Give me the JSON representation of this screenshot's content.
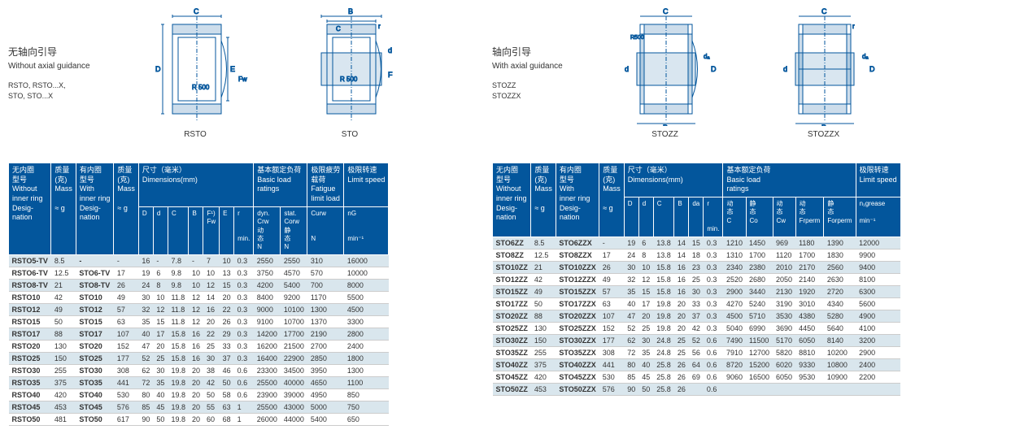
{
  "left": {
    "title_cn": "无轴向引导",
    "title_en": "Without axial guidance",
    "codes": "RSTO, RSTO...X,\nSTO, STO...X",
    "dia_labels": [
      "RSTO",
      "STO"
    ],
    "headers": {
      "c1": "无内圈\n型号",
      "c1b": "Without\ninner ring\nDesig-\nnation",
      "c2": "质量\n(克)",
      "c2b": "Mass",
      "c2c": "≈ g",
      "c3": "有内圈\n型号",
      "c3b": "With\ninner ring\nDesig-\nnation",
      "c4": "质量\n(克)",
      "c4b": "Mass",
      "c4c": "≈ g",
      "c5": "尺寸（毫米）\nDimensions(mm)",
      "dims": [
        "D",
        "d",
        "C",
        "B",
        "F¹)\nFw",
        "E",
        "r"
      ],
      "r_sub": "min.",
      "c6": "基本额定负荷\nBasic load\nratings",
      "dyn": "dyn.\nCrw\n动\n态\nN",
      "stat": "stat.\nCorw\n静\n态\nN",
      "c7": "极限疲劳\n载荷\nFatigue\nlimit load",
      "c7b": "Curw",
      "c7c": "N",
      "c8": "极限转速\nLimit speed",
      "c8b": "nG",
      "c8c": "min⁻¹"
    },
    "rows": [
      [
        "RSTO5-TV",
        "8.5",
        "-",
        "-",
        "16",
        "-",
        "7.8",
        "-",
        "7",
        "10",
        "0.3",
        "2550",
        "2550",
        "310",
        "16000"
      ],
      [
        "RSTO6-TV",
        "12.5",
        "STO6-TV",
        "17",
        "19",
        "6",
        "9.8",
        "10",
        "10",
        "13",
        "0.3",
        "3750",
        "4570",
        "570",
        "10000"
      ],
      [
        "RSTO8-TV",
        "21",
        "STO8-TV",
        "26",
        "24",
        "8",
        "9.8",
        "10",
        "12",
        "15",
        "0.3",
        "4200",
        "5400",
        "700",
        "8000"
      ],
      [
        "RSTO10",
        "42",
        "STO10",
        "49",
        "30",
        "10",
        "11.8",
        "12",
        "14",
        "20",
        "0.3",
        "8400",
        "9200",
        "1170",
        "5500"
      ],
      [
        "RSTO12",
        "49",
        "STO12",
        "57",
        "32",
        "12",
        "11.8",
        "12",
        "16",
        "22",
        "0.3",
        "9000",
        "10100",
        "1300",
        "4500"
      ],
      [
        "RSTO15",
        "50",
        "STO15",
        "63",
        "35",
        "15",
        "11.8",
        "12",
        "20",
        "26",
        "0.3",
        "9100",
        "10700",
        "1370",
        "3300"
      ],
      [
        "RSTO17",
        "88",
        "STO17",
        "107",
        "40",
        "17",
        "15.8",
        "16",
        "22",
        "29",
        "0.3",
        "14200",
        "17700",
        "2190",
        "2800"
      ],
      [
        "RSTO20",
        "130",
        "STO20",
        "152",
        "47",
        "20",
        "15.8",
        "16",
        "25",
        "33",
        "0.3",
        "16200",
        "21500",
        "2700",
        "2400"
      ],
      [
        "RSTO25",
        "150",
        "STO25",
        "177",
        "52",
        "25",
        "15.8",
        "16",
        "30",
        "37",
        "0.3",
        "16400",
        "22900",
        "2850",
        "1800"
      ],
      [
        "RSTO30",
        "255",
        "STO30",
        "308",
        "62",
        "30",
        "19.8",
        "20",
        "38",
        "46",
        "0.6",
        "23300",
        "34500",
        "3950",
        "1300"
      ],
      [
        "RSTO35",
        "375",
        "STO35",
        "441",
        "72",
        "35",
        "19.8",
        "20",
        "42",
        "50",
        "0.6",
        "25500",
        "40000",
        "4650",
        "1100"
      ],
      [
        "RSTO40",
        "420",
        "STO40",
        "530",
        "80",
        "40",
        "19.8",
        "20",
        "50",
        "58",
        "0.6",
        "23900",
        "39000",
        "4950",
        "850"
      ],
      [
        "RSTO45",
        "453",
        "STO45",
        "576",
        "85",
        "45",
        "19.8",
        "20",
        "55",
        "63",
        "1",
        "25500",
        "43000",
        "5000",
        "750"
      ],
      [
        "RSTO50",
        "481",
        "STO50",
        "617",
        "90",
        "50",
        "19.8",
        "20",
        "60",
        "68",
        "1",
        "26000",
        "44000",
        "5400",
        "650"
      ]
    ]
  },
  "right": {
    "title_cn": "轴向引导",
    "title_en": "With axial guidance",
    "codes": "STOZZ\nSTOZZX",
    "dia_labels": [
      "STOZZ",
      "STOZZX"
    ],
    "headers": {
      "c1": "无内圈\n型号",
      "c1b": "Without\ninner ring\nDesig-\nnation",
      "c2": "质量\n(克)",
      "c2b": "Mass",
      "c2c": "≈ g",
      "c3": "有内圈\n型号",
      "c3b": "With\ninner ring\nDesig-\nnation",
      "c4": "质量\n(克)",
      "c4b": "Mass",
      "c4c": "≈ g",
      "c5": "尺寸（毫米）\nDimensions(mm)",
      "dims": [
        "D",
        "d",
        "C",
        "B",
        "da",
        "r"
      ],
      "r_sub": "min.",
      "c6": "基本额定负荷\nBasic load\nratings",
      "loads": [
        "动\n态\nC",
        "静\n态\nCo",
        "动\n态\nCw",
        "动\n态\nFrperm",
        "静\n态\nForperm"
      ],
      "c8": "极限转速\nLimit speed",
      "c8b": "n₁grease",
      "c8c": "min⁻¹"
    },
    "rows": [
      [
        "STO6ZZ",
        "8.5",
        "STO6ZZX",
        "-",
        "19",
        "6",
        "13.8",
        "14",
        "15",
        "0.3",
        "1210",
        "1450",
        "969",
        "1180",
        "1390",
        "12000"
      ],
      [
        "STO8ZZ",
        "12.5",
        "STO8ZZX",
        "17",
        "24",
        "8",
        "13.8",
        "14",
        "18",
        "0.3",
        "1310",
        "1700",
        "1120",
        "1700",
        "1830",
        "9900"
      ],
      [
        "STO10ZZ",
        "21",
        "STO10ZZX",
        "26",
        "30",
        "10",
        "15.8",
        "16",
        "23",
        "0.3",
        "2340",
        "2380",
        "2010",
        "2170",
        "2560",
        "9400"
      ],
      [
        "STO12ZZ",
        "42",
        "STO12ZZX",
        "49",
        "32",
        "12",
        "15.8",
        "16",
        "25",
        "0.3",
        "2520",
        "2680",
        "2050",
        "2140",
        "2630",
        "8100"
      ],
      [
        "STO15ZZ",
        "49",
        "STO15ZZX",
        "57",
        "35",
        "15",
        "15.8",
        "16",
        "30",
        "0.3",
        "2900",
        "3440",
        "2130",
        "1920",
        "2720",
        "6300"
      ],
      [
        "STO17ZZ",
        "50",
        "STO17ZZX",
        "63",
        "40",
        "17",
        "19.8",
        "20",
        "33",
        "0.3",
        "4270",
        "5240",
        "3190",
        "3010",
        "4340",
        "5600"
      ],
      [
        "STO20ZZ",
        "88",
        "STO20ZZX",
        "107",
        "47",
        "20",
        "19.8",
        "20",
        "37",
        "0.3",
        "4500",
        "5710",
        "3530",
        "4380",
        "5280",
        "4900"
      ],
      [
        "STO25ZZ",
        "130",
        "STO25ZZX",
        "152",
        "52",
        "25",
        "19.8",
        "20",
        "42",
        "0.3",
        "5040",
        "6990",
        "3690",
        "4450",
        "5640",
        "4100"
      ],
      [
        "STO30ZZ",
        "150",
        "STO30ZZX",
        "177",
        "62",
        "30",
        "24.8",
        "25",
        "52",
        "0.6",
        "7490",
        "11500",
        "5170",
        "6050",
        "8140",
        "3200"
      ],
      [
        "STO35ZZ",
        "255",
        "STO35ZZX",
        "308",
        "72",
        "35",
        "24.8",
        "25",
        "56",
        "0.6",
        "7910",
        "12700",
        "5820",
        "8810",
        "10200",
        "2900"
      ],
      [
        "STO40ZZ",
        "375",
        "STO40ZZX",
        "441",
        "80",
        "40",
        "25.8",
        "26",
        "64",
        "0.6",
        "8720",
        "15200",
        "6020",
        "9330",
        "10800",
        "2400"
      ],
      [
        "STO45ZZ",
        "420",
        "STO45ZZX",
        "530",
        "85",
        "45",
        "25.8",
        "26",
        "69",
        "0.6",
        "9060",
        "16500",
        "6050",
        "9530",
        "10900",
        "2200"
      ],
      [
        "STO50ZZ",
        "453",
        "STO50ZZX",
        "576",
        "90",
        "50",
        "25.8",
        "26",
        "",
        "0.6",
        "",
        "",
        "",
        "",
        "",
        ""
      ]
    ]
  },
  "svg_color": "#03569c"
}
